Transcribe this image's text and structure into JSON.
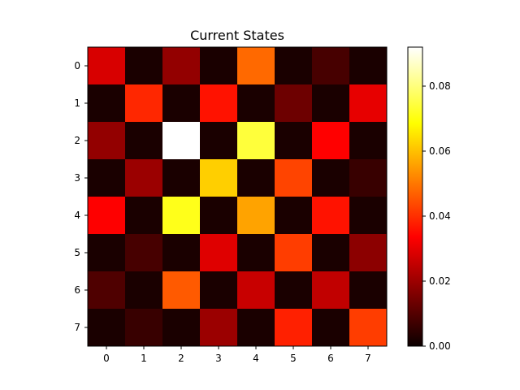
{
  "chart_data": {
    "type": "heatmap",
    "title": "Current States",
    "xlabel": "",
    "ylabel": "",
    "x_categories": [
      "0",
      "1",
      "2",
      "3",
      "4",
      "5",
      "6",
      "7"
    ],
    "y_categories": [
      "0",
      "1",
      "2",
      "3",
      "4",
      "5",
      "6",
      "7"
    ],
    "values": [
      [
        0.027,
        0.002,
        0.018,
        0.002,
        0.048,
        0.002,
        0.008,
        0.002
      ],
      [
        0.002,
        0.039,
        0.002,
        0.036,
        0.002,
        0.013,
        0.002,
        0.029
      ],
      [
        0.018,
        0.002,
        0.092,
        0.002,
        0.074,
        0.002,
        0.033,
        0.002
      ],
      [
        0.002,
        0.019,
        0.002,
        0.062,
        0.002,
        0.043,
        0.002,
        0.006
      ],
      [
        0.032,
        0.002,
        0.071,
        0.002,
        0.056,
        0.002,
        0.036,
        0.002
      ],
      [
        0.002,
        0.008,
        0.002,
        0.028,
        0.002,
        0.042,
        0.002,
        0.017
      ],
      [
        0.009,
        0.002,
        0.046,
        0.002,
        0.025,
        0.002,
        0.024,
        0.002
      ],
      [
        0.002,
        0.006,
        0.002,
        0.019,
        0.002,
        0.038,
        0.002,
        0.042
      ]
    ],
    "colormap": "hot",
    "colorbar": {
      "min": 0.0,
      "max": 0.092,
      "ticks": [
        0.0,
        0.02,
        0.04,
        0.06,
        0.08
      ],
      "tick_labels": [
        "0.00",
        "0.02",
        "0.04",
        "0.06",
        "0.08"
      ]
    },
    "grid": false,
    "legend": "none"
  }
}
